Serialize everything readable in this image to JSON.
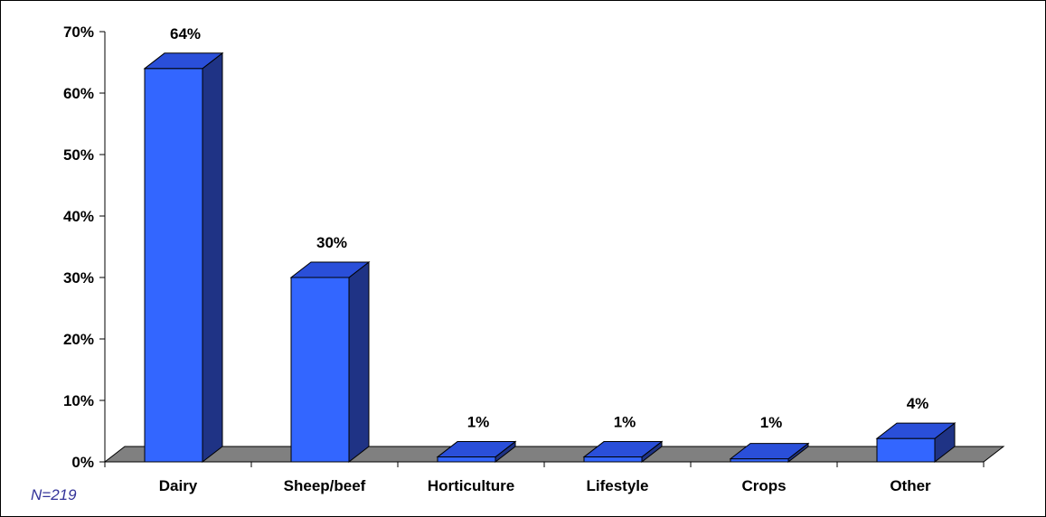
{
  "chart_data": {
    "type": "bar",
    "categories": [
      "Dairy",
      "Sheep/beef",
      "Horticulture",
      "Lifestyle",
      "Crops",
      "Other"
    ],
    "values": [
      64,
      30,
      1,
      1,
      1,
      4
    ],
    "data_labels": [
      "64%",
      "30%",
      "1%",
      "1%",
      "1%",
      "4%"
    ],
    "value_shown": [
      64,
      30,
      0.8,
      0.8,
      0.5,
      3.8
    ],
    "ylim": [
      0,
      70
    ],
    "yticks": [
      0,
      10,
      20,
      30,
      40,
      50,
      60,
      70
    ],
    "ytick_labels": [
      "0%",
      "10%",
      "20%",
      "30%",
      "40%",
      "50%",
      "60%",
      "70%"
    ],
    "title": "",
    "xlabel": "",
    "ylabel": "",
    "grid": false,
    "legend": "none",
    "style": "3d-column",
    "colors": {
      "bar_front": "#3366FF",
      "bar_top": "#2A4FD9",
      "bar_side": "#1F3385",
      "floor": "#808080",
      "axis": "#000000"
    }
  },
  "note": "N=219"
}
